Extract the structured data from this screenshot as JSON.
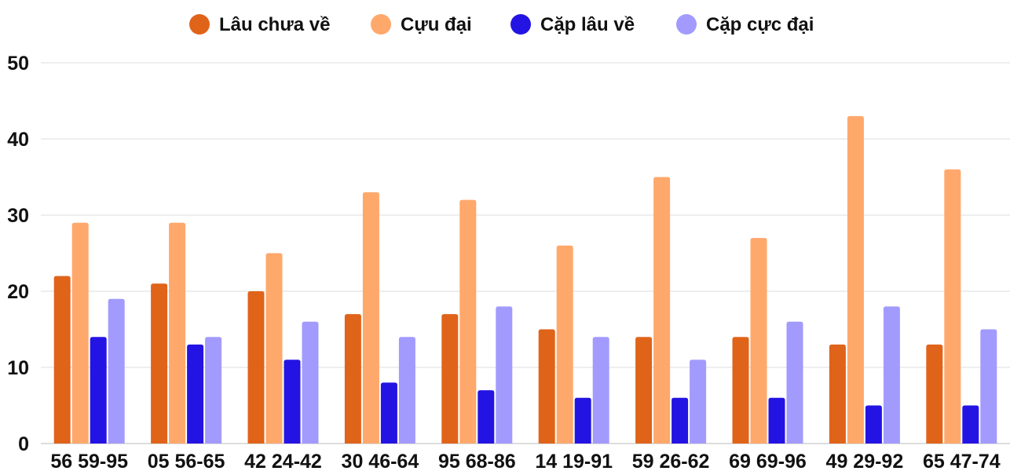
{
  "chart_data": {
    "type": "bar",
    "title": "",
    "xlabel": "",
    "ylabel": "",
    "ylim": [
      0,
      50
    ],
    "yticks": [
      0,
      10,
      20,
      30,
      40,
      50
    ],
    "grid": true,
    "legend_position": "top-center",
    "categories": [
      "56 59-95",
      "05 56-65",
      "42 24-42",
      "30 46-64",
      "95 68-86",
      "14 19-91",
      "59 26-62",
      "69 69-96",
      "49 29-92",
      "65 47-74"
    ],
    "series": [
      {
        "name": "Lâu chưa về",
        "color": "#e0631a",
        "values": [
          22,
          21,
          20,
          17,
          17,
          15,
          14,
          14,
          13,
          13
        ]
      },
      {
        "name": "Cựu đại",
        "color": "#ffa86b",
        "values": [
          29,
          29,
          25,
          33,
          32,
          26,
          35,
          27,
          43,
          36
        ]
      },
      {
        "name": "Cặp lâu về",
        "color": "#2414e3",
        "values": [
          14,
          13,
          11,
          8,
          7,
          6,
          6,
          6,
          5,
          5
        ]
      },
      {
        "name": "Cặp cực đại",
        "color": "#a29bfd",
        "values": [
          19,
          14,
          16,
          14,
          18,
          14,
          11,
          16,
          18,
          15
        ]
      }
    ]
  }
}
